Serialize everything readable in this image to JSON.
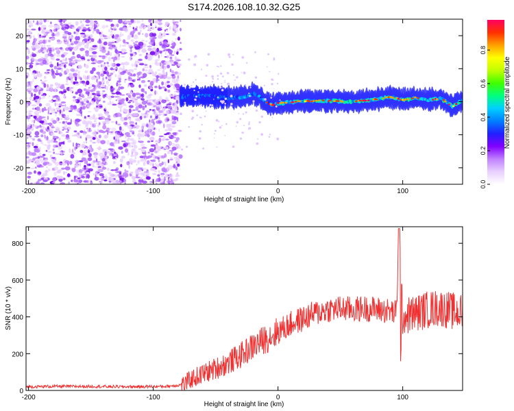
{
  "title": "S174.2026.108.10.32.G25",
  "colors": {
    "snr_line": "#f03030",
    "colormap": [
      "#ffffff",
      "#e8d0ff",
      "#c080ff",
      "#8000ff",
      "#2020ff",
      "#0080ff",
      "#00d0ff",
      "#00ff80",
      "#40ff00",
      "#c0ff00",
      "#ffff00",
      "#ffa000",
      "#ff3000",
      "#ff0060"
    ]
  },
  "chart_data": [
    {
      "type": "heatmap",
      "title": "",
      "xlabel": "Height of straight line (km)",
      "ylabel": "Frequency (Hz)",
      "xlim": [
        -202,
        148
      ],
      "ylim": [
        -25,
        25
      ],
      "xticks": [
        -200,
        -100,
        0,
        100
      ],
      "yticks": [
        -20,
        -10,
        0,
        10,
        20
      ],
      "colorbar": {
        "label": "Normalized spectral amplitude",
        "range": [
          0,
          0.98
        ],
        "ticks": [
          0.0,
          0.2,
          0.4,
          0.6,
          0.8
        ]
      },
      "noise_region_km": [
        -202,
        -78
      ],
      "signal_track": {
        "x": [
          -78,
          -60,
          -40,
          -25,
          -20,
          -15,
          -10,
          -5,
          0,
          20,
          40,
          60,
          80,
          90,
          100,
          110,
          120,
          130,
          135,
          140,
          148
        ],
        "y": [
          1.5,
          1.8,
          1.2,
          1.5,
          2.5,
          1.5,
          0.0,
          -1.0,
          -0.5,
          0.2,
          0.3,
          0.0,
          0.8,
          1.5,
          0.5,
          1.2,
          0.5,
          1.0,
          0.0,
          -1.5,
          0.5
        ]
      }
    },
    {
      "type": "line",
      "title": "",
      "xlabel": "Height of straight line (km)",
      "ylabel": "SNR (10 * v/v)",
      "xlim": [
        -202,
        148
      ],
      "ylim": [
        0,
        890
      ],
      "xticks": [
        -200,
        -100,
        0,
        100
      ],
      "yticks": [
        0,
        200,
        400,
        600,
        800
      ],
      "series": [
        {
          "x": [
            -202,
            -180,
            -150,
            -120,
            -90,
            -80,
            -75,
            -70,
            -60,
            -50,
            -40,
            -30,
            -20,
            -10,
            0,
            10,
            20,
            30,
            40,
            50,
            60,
            70,
            80,
            90,
            95,
            97,
            100,
            110,
            120,
            130,
            140,
            148
          ],
          "y": [
            20,
            22,
            22,
            20,
            22,
            28,
            35,
            60,
            90,
            120,
            150,
            190,
            240,
            280,
            320,
            360,
            390,
            420,
            440,
            445,
            440,
            445,
            440,
            430,
            420,
            880,
            400,
            420,
            440,
            450,
            430,
            420
          ]
        }
      ]
    }
  ]
}
